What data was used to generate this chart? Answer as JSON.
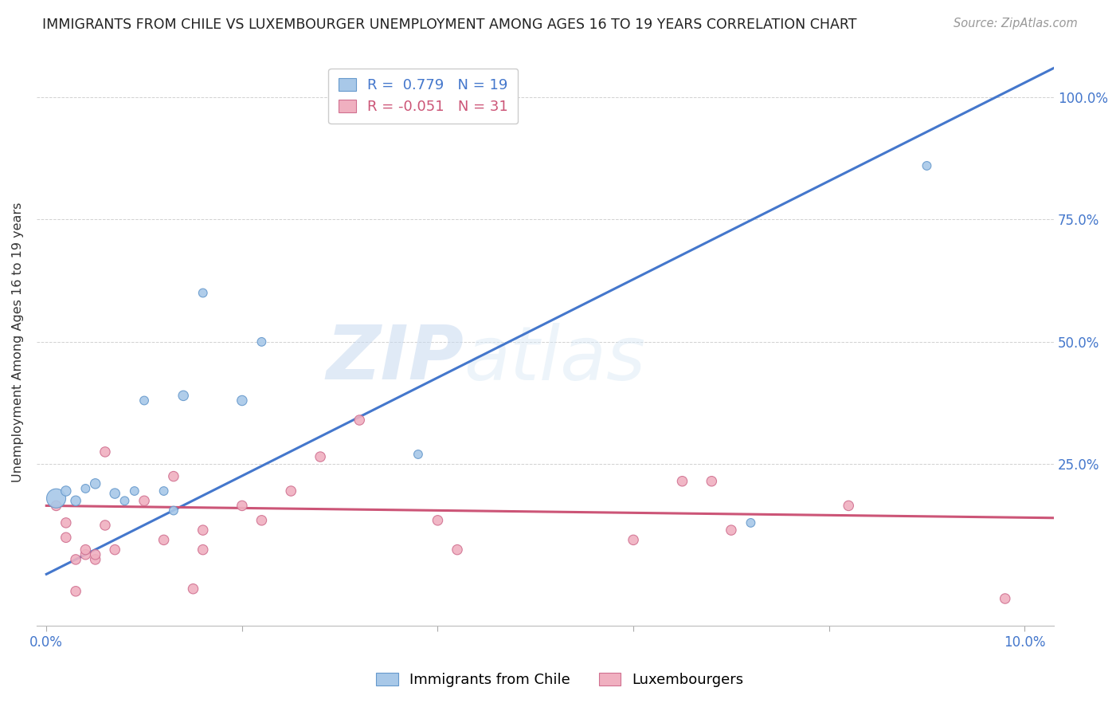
{
  "title": "IMMIGRANTS FROM CHILE VS LUXEMBOURGER UNEMPLOYMENT AMONG AGES 16 TO 19 YEARS CORRELATION CHART",
  "source": "Source: ZipAtlas.com",
  "ylabel": "Unemployment Among Ages 16 to 19 years",
  "xlim": [
    -0.001,
    0.103
  ],
  "ylim": [
    -0.08,
    1.08
  ],
  "xticks": [
    0.0,
    0.02,
    0.04,
    0.06,
    0.08,
    0.1
  ],
  "xtick_labels": [
    "0.0%",
    "",
    "",
    "",
    "",
    "10.0%"
  ],
  "ytick_labels_right": [
    "25.0%",
    "50.0%",
    "75.0%",
    "100.0%"
  ],
  "yticks_right": [
    0.25,
    0.5,
    0.75,
    1.0
  ],
  "grid_yticks": [
    0.25,
    0.5,
    0.75,
    1.0
  ],
  "background_color": "#ffffff",
  "chile_color": "#a8c8e8",
  "chile_edge_color": "#6699cc",
  "lux_color": "#f0b0c0",
  "lux_edge_color": "#d07090",
  "chile_line_color": "#4477cc",
  "lux_line_color": "#cc5577",
  "legend_R_chile": "R =  0.779",
  "legend_N_chile": "N = 19",
  "legend_R_lux": "R = -0.051",
  "legend_N_lux": "N = 31",
  "chile_scatter_x": [
    0.001,
    0.002,
    0.003,
    0.004,
    0.005,
    0.007,
    0.008,
    0.009,
    0.01,
    0.012,
    0.013,
    0.014,
    0.016,
    0.02,
    0.022,
    0.038,
    0.04,
    0.072,
    0.09
  ],
  "chile_scatter_y": [
    0.18,
    0.195,
    0.175,
    0.2,
    0.21,
    0.19,
    0.175,
    0.195,
    0.38,
    0.195,
    0.155,
    0.39,
    0.6,
    0.38,
    0.5,
    0.27,
    1.0,
    0.13,
    0.86
  ],
  "chile_scatter_size": [
    300,
    80,
    80,
    60,
    80,
    80,
    60,
    60,
    60,
    60,
    60,
    80,
    60,
    80,
    60,
    60,
    60,
    60,
    60
  ],
  "lux_scatter_x": [
    0.001,
    0.002,
    0.002,
    0.003,
    0.003,
    0.004,
    0.004,
    0.005,
    0.005,
    0.006,
    0.006,
    0.007,
    0.01,
    0.012,
    0.013,
    0.015,
    0.016,
    0.016,
    0.02,
    0.022,
    0.025,
    0.028,
    0.032,
    0.04,
    0.042,
    0.06,
    0.065,
    0.068,
    0.07,
    0.082,
    0.098
  ],
  "lux_scatter_y": [
    0.165,
    0.1,
    0.13,
    -0.01,
    0.055,
    0.065,
    0.075,
    0.055,
    0.065,
    0.275,
    0.125,
    0.075,
    0.175,
    0.095,
    0.225,
    -0.005,
    0.075,
    0.115,
    0.165,
    0.135,
    0.195,
    0.265,
    0.34,
    0.135,
    0.075,
    0.095,
    0.215,
    0.215,
    0.115,
    0.165,
    -0.025
  ],
  "lux_scatter_size": [
    80,
    80,
    80,
    80,
    80,
    80,
    80,
    80,
    80,
    80,
    80,
    80,
    80,
    80,
    80,
    80,
    80,
    80,
    80,
    80,
    80,
    80,
    80,
    80,
    80,
    80,
    80,
    80,
    80,
    80,
    80
  ],
  "chile_trendline_x": [
    0.0,
    0.103
  ],
  "chile_trendline_y": [
    0.025,
    1.06
  ],
  "lux_trendline_x": [
    0.0,
    0.103
  ],
  "lux_trendline_y": [
    0.165,
    0.14
  ],
  "watermark": "ZIPatlas"
}
